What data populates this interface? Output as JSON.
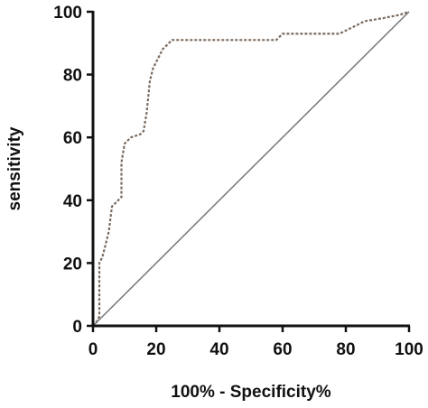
{
  "chart_data": {
    "type": "line",
    "x_label": "100% - Specificity%",
    "y_label": "sensitivity",
    "xlim": [
      0,
      100
    ],
    "ylim": [
      0,
      100
    ],
    "xticks": [
      0,
      20,
      40,
      60,
      80,
      100
    ],
    "yticks": [
      0,
      20,
      40,
      60,
      80,
      100
    ],
    "series": [
      {
        "color": "#7a6a5e",
        "dash": true,
        "x": [
          0,
          1,
          2,
          2,
          3,
          5,
          6,
          8,
          9,
          9,
          10,
          12,
          15,
          16,
          17,
          18,
          19,
          20,
          21,
          22,
          24,
          25,
          30,
          40,
          50,
          58,
          60,
          70,
          78,
          82,
          86,
          92,
          97,
          100
        ],
        "values": [
          0,
          1,
          3,
          20,
          22,
          30,
          38,
          40,
          41,
          52,
          58,
          60,
          61,
          62,
          68,
          78,
          82,
          84,
          86,
          88,
          90,
          91,
          91,
          91,
          91,
          91,
          93,
          93,
          93,
          95,
          97,
          98,
          99,
          100
        ]
      },
      {
        "color": "#777777",
        "dash": false,
        "x": [
          0,
          100
        ],
        "values": [
          0,
          100
        ]
      }
    ]
  }
}
